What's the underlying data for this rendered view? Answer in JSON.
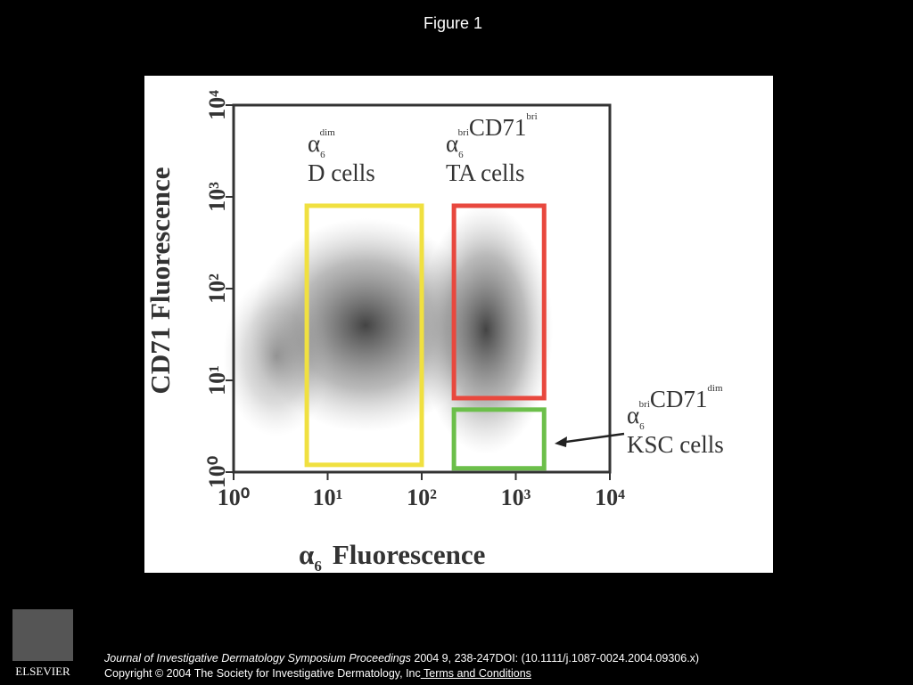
{
  "header": {
    "title": "Figure 1"
  },
  "chart_data": {
    "type": "scatter",
    "log_x": true,
    "log_y": true,
    "xlim": [
      1,
      10000
    ],
    "ylim": [
      1,
      10000
    ],
    "xticks": [
      {
        "value": 1,
        "label": "10⁰"
      },
      {
        "value": 10,
        "label": "10¹"
      },
      {
        "value": 100,
        "label": "10²"
      },
      {
        "value": 1000,
        "label": "10³"
      },
      {
        "value": 10000,
        "label": "10⁴"
      }
    ],
    "yticks": [
      {
        "value": 1,
        "label": "10⁰"
      },
      {
        "value": 10,
        "label": "10¹"
      },
      {
        "value": 100,
        "label": "10²"
      },
      {
        "value": 1000,
        "label": "10³"
      },
      {
        "value": 10000,
        "label": "10⁴"
      }
    ],
    "xlabel": {
      "symbol": "α",
      "sub": "6",
      "text": "Fluorescence"
    },
    "ylabel": "CD71 Fluorescence",
    "gates": [
      {
        "color": "#f0e040",
        "x": [
          6,
          100
        ],
        "y": [
          1.2,
          800
        ],
        "label": [
          {
            "text": "α",
            "sub": "6",
            "sup": "dim"
          }
        ],
        "name": "D cells"
      },
      {
        "color": "#e8483e",
        "x": [
          220,
          2000
        ],
        "y": [
          6.4,
          800
        ],
        "label": [
          {
            "text": "α",
            "sub": "6",
            "sup": "bri"
          },
          {
            "text": "CD71",
            "sup": "bri"
          }
        ],
        "name": "TA cells"
      },
      {
        "color": "#6cbf4a",
        "x": [
          220,
          2000
        ],
        "y": [
          1.1,
          4.8
        ],
        "label": [
          {
            "text": "α",
            "sub": "6",
            "sup": "bri"
          },
          {
            "text": "CD71",
            "sup": "dim"
          }
        ],
        "name": "KSC cells"
      }
    ]
  },
  "caption": {
    "journal": "Journal of Investigative Dermatology Symposium Proceedings",
    "citation": " 2004 9, 238-247DOI: (10.1111/j.1087-0024.2004.09306.x)",
    "copyright": "Copyright © 2004 The Society for Investigative Dermatology, Inc",
    "link": " Terms and Conditions"
  },
  "logo": "ELSEVIER"
}
